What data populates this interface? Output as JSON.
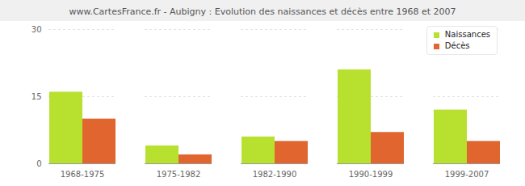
{
  "chart_data": {
    "type": "bar",
    "title": "www.CartesFrance.fr - Aubigny : Evolution des naissances et décès entre 1968 et 2007",
    "categories": [
      "1968-1975",
      "1975-1982",
      "1982-1990",
      "1990-1999",
      "1999-2007"
    ],
    "series": [
      {
        "name": "Naissances",
        "color": "#b8e02e",
        "values": [
          16,
          4,
          6,
          21,
          12
        ]
      },
      {
        "name": "Décès",
        "color": "#e0652f",
        "values": [
          10,
          2,
          5,
          7,
          5
        ]
      }
    ],
    "ylim": [
      0,
      30
    ],
    "yticks": [
      0,
      15,
      30
    ],
    "grid": true,
    "legend": "top-right"
  }
}
